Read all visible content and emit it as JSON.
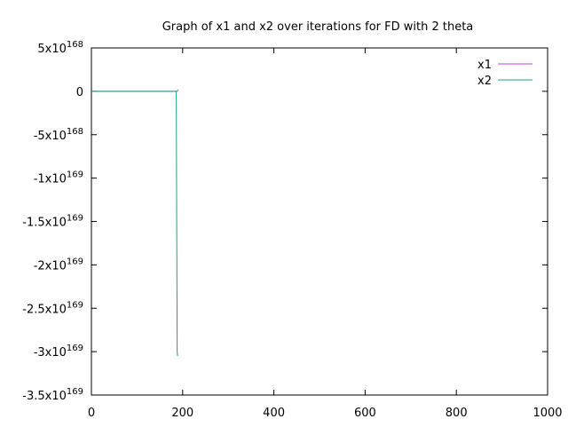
{
  "chart_data": {
    "type": "line",
    "title": "Graph of x1 and x2 over iterations for FD with 2 theta",
    "xlabel": "",
    "ylabel": "",
    "xlim": [
      0,
      1000
    ],
    "ylim": [
      -3.5e+169,
      5e+168
    ],
    "x_ticks": [
      {
        "value": 0,
        "label": "0"
      },
      {
        "value": 200,
        "label": "200"
      },
      {
        "value": 400,
        "label": "400"
      },
      {
        "value": 600,
        "label": "600"
      },
      {
        "value": 800,
        "label": "800"
      },
      {
        "value": 1000,
        "label": "1000"
      }
    ],
    "y_ticks": [
      {
        "value": 5e+168,
        "mantissa": "5x10",
        "exponent": "168"
      },
      {
        "value": 0,
        "mantissa": "0",
        "exponent": ""
      },
      {
        "value": -5e+168,
        "mantissa": "-5x10",
        "exponent": "168"
      },
      {
        "value": -1e+169,
        "mantissa": "-1x10",
        "exponent": "169"
      },
      {
        "value": -1.5e+169,
        "mantissa": "-1.5x10",
        "exponent": "169"
      },
      {
        "value": -2e+169,
        "mantissa": "-2x10",
        "exponent": "169"
      },
      {
        "value": -2.5e+169,
        "mantissa": "-2.5x10",
        "exponent": "169"
      },
      {
        "value": -3e+169,
        "mantissa": "-3x10",
        "exponent": "169"
      },
      {
        "value": -3.5e+169,
        "mantissa": "-3.5x10",
        "exponent": "169"
      }
    ],
    "legend_position": "top-right",
    "grid": false,
    "series": [
      {
        "name": "x1",
        "color": "#c040e0",
        "points": [
          [
            0,
            0
          ],
          [
            180,
            0
          ],
          [
            186,
            0
          ],
          [
            188,
            0
          ],
          [
            190,
            2e+167
          ]
        ]
      },
      {
        "name": "x2",
        "color": "#20a080",
        "points": [
          [
            0,
            0
          ],
          [
            180,
            0
          ],
          [
            186,
            0
          ],
          [
            188,
            -3e+169
          ],
          [
            189,
            -3.05e+169
          ]
        ]
      }
    ]
  }
}
